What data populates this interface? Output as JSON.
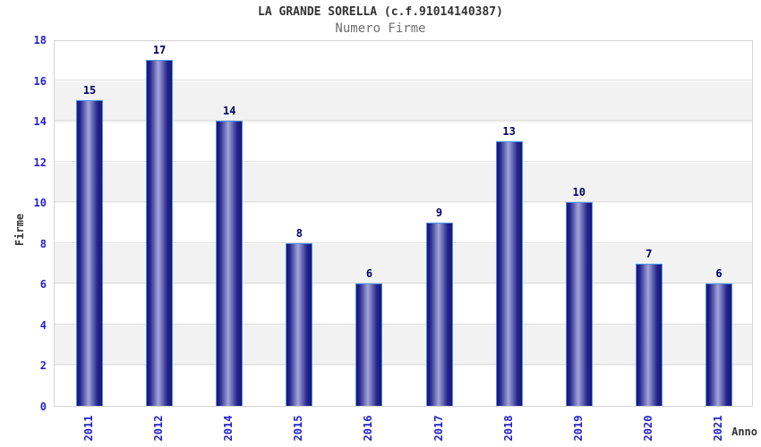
{
  "chart_data": {
    "type": "bar",
    "title": "LA GRANDE SORELLA (c.f.91014140387)",
    "subtitle": "Numero Firme",
    "xlabel": "Anno",
    "ylabel": "Firme",
    "categories": [
      "2011",
      "2012",
      "2014",
      "2015",
      "2016",
      "2017",
      "2018",
      "2019",
      "2020",
      "2021"
    ],
    "values": [
      15,
      17,
      14,
      8,
      6,
      9,
      13,
      10,
      7,
      6
    ],
    "ylim": [
      0,
      18
    ],
    "ytick_step": 2,
    "y_ticks": [
      0,
      2,
      4,
      6,
      8,
      10,
      12,
      14,
      16,
      18
    ],
    "legend": "none",
    "grid": "horizontal gridlines every 2 units with alternating white/gray bands",
    "colors": {
      "background": "#ffffff",
      "band_gray": "#f2f2f2",
      "band_white": "#ffffff",
      "grid_line": "#dedede",
      "plot_border": "#d4d4d4",
      "bar_edge_dark": "#17177c",
      "bar_mid": "#23238c",
      "bar_highlight": "#a2a6d8",
      "bar_border": "#4d94e8",
      "tick_label_blue": "#2222cc",
      "value_label_navy": "#000066",
      "title_color": "#333333",
      "subtitle_color": "#6f6f6f"
    }
  }
}
